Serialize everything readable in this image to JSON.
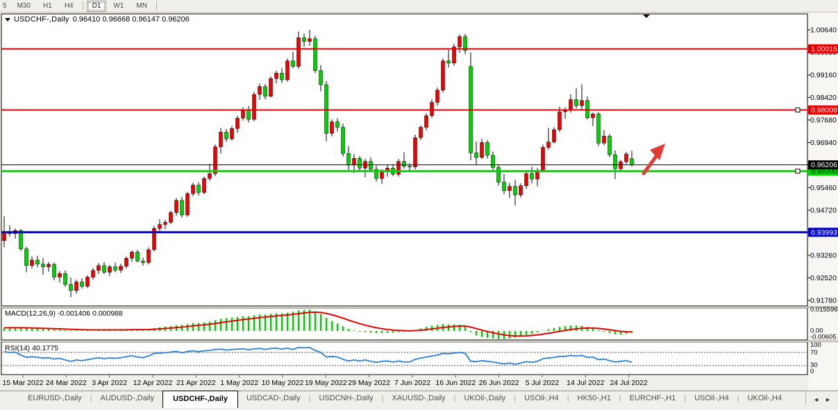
{
  "toolbar": {
    "timeframes": [
      {
        "label": "5",
        "active": false
      },
      {
        "label": "M30",
        "active": false
      },
      {
        "label": "H1",
        "active": false
      },
      {
        "label": "H4",
        "active": false
      },
      {
        "label": "D1",
        "active": true
      },
      {
        "label": "W1",
        "active": false
      },
      {
        "label": "MN",
        "active": false
      }
    ]
  },
  "chart": {
    "symbol": "USDCHF-,Daily",
    "ohlc_text": "0.96410 0.96668 0.96147 0.96206",
    "y_axis_labels": [
      "1.00640",
      "0.99900",
      "0.99160",
      "0.98420",
      "0.97680",
      "0.96940",
      "0.96200",
      "0.95460",
      "0.94720",
      "0.93980",
      "0.93260",
      "0.92520",
      "0.91780"
    ],
    "x_axis_labels": [
      "15 Mar 2022",
      "24 Mar 2022",
      "3 Apr 2022",
      "12 Apr 2022",
      "21 Apr 2022",
      "1 May 2022",
      "10 May 2022",
      "19 May 2022",
      "29 May 2022",
      "7 Jun 2022",
      "16 Jun 2022",
      "26 Jun 2022",
      "5 Jul 2022",
      "14 Jul 2022",
      "24 Jul 2022"
    ]
  },
  "macd_panel": {
    "label": "MACD(12,26,9) -0.001406 0.000988",
    "axis_labels": [
      "0.015596",
      "0.00",
      "-0.00605"
    ]
  },
  "rsi_panel": {
    "label": "RSI(14) 40.1775",
    "axis_labels": [
      "100",
      "70",
      "30",
      "0"
    ]
  },
  "tabbar": {
    "tabs": [
      "EURUSD-,Daily",
      "AUDUSD-,Daily",
      "USDCHF-,Daily",
      "USDCAD-,Daily",
      "USDCNH-,Daily",
      "XAUUSD-,Daily",
      "UKOil-,Daily",
      "USOil-,H4",
      "HK50-,H1",
      "EURCHF-,H1",
      "USOil-,H4",
      "UKOil-,H4"
    ],
    "active_index": 2,
    "scroll_left_icon": "◄",
    "scroll_right_icon": "►"
  },
  "colors": {
    "candle_up": "#f00000",
    "candle_down": "#00d300",
    "wick": "#000000",
    "level_red": "#e00000",
    "level_green": "#00d300",
    "level_blue": "#0000c8",
    "current_price_line": "#000000",
    "macd_hist": "#00cc00",
    "macd_signal": "#e00000",
    "rsi_line": "#2a7fd4",
    "arrow": "#e23b34"
  },
  "chart_data": {
    "type": "candlestick",
    "symbol": "USDCHF",
    "timeframe": "Daily",
    "current_bar": {
      "open": 0.9641,
      "high": 0.96668,
      "low": 0.96147,
      "close": 0.96206
    },
    "levels": [
      {
        "price": 1.00015,
        "label": "1.00015",
        "color": "#e00000",
        "text_color": "#ffffff",
        "line_width": 2,
        "handle": false
      },
      {
        "price": 0.98008,
        "label": "0.98008",
        "color": "#e00000",
        "text_color": "#ffffff",
        "line_width": 2,
        "handle": true
      },
      {
        "price": 0.96,
        "label": "0.96000",
        "color": "#00d300",
        "text_color": "#000000",
        "line_width": 3,
        "handle": true
      },
      {
        "price": 0.93993,
        "label": "0.93993",
        "color": "#0000c8",
        "text_color": "#ffffff",
        "line_width": 3,
        "handle": false
      }
    ],
    "current_price": {
      "value": 0.96206,
      "label": "0.96206"
    },
    "y_ticks": [
      1.0064,
      0.999,
      0.9916,
      0.9842,
      0.9768,
      0.9694,
      0.962,
      0.9546,
      0.9472,
      0.9398,
      0.9326,
      0.9252,
      0.9178
    ],
    "ylim": [
      0.915,
      1.009
    ],
    "candles_ohlc": [
      [
        0.9372,
        0.9452,
        0.935,
        0.94
      ],
      [
        0.94,
        0.9422,
        0.9385,
        0.9395
      ],
      [
        0.9395,
        0.9412,
        0.9378,
        0.9405
      ],
      [
        0.9405,
        0.941,
        0.9338,
        0.9345
      ],
      [
        0.9345,
        0.9352,
        0.9268,
        0.929
      ],
      [
        0.929,
        0.932,
        0.928,
        0.9308
      ],
      [
        0.9308,
        0.9322,
        0.9284,
        0.9295
      ],
      [
        0.9295,
        0.9314,
        0.926,
        0.9286
      ],
      [
        0.9286,
        0.9302,
        0.927,
        0.9294
      ],
      [
        0.9294,
        0.93,
        0.9242,
        0.9252
      ],
      [
        0.9252,
        0.9272,
        0.9234,
        0.9264
      ],
      [
        0.9264,
        0.9274,
        0.922,
        0.9228
      ],
      [
        0.9228,
        0.925,
        0.9186,
        0.9208
      ],
      [
        0.9208,
        0.9244,
        0.9198,
        0.9236
      ],
      [
        0.9236,
        0.9248,
        0.9214,
        0.9222
      ],
      [
        0.9222,
        0.9258,
        0.9216,
        0.9252
      ],
      [
        0.9252,
        0.9282,
        0.9244,
        0.9274
      ],
      [
        0.9274,
        0.9298,
        0.9262,
        0.929
      ],
      [
        0.929,
        0.9302,
        0.9262,
        0.9268
      ],
      [
        0.9268,
        0.9292,
        0.9256,
        0.9286
      ],
      [
        0.9286,
        0.93,
        0.9268,
        0.9275
      ],
      [
        0.9275,
        0.9296,
        0.9266,
        0.9288
      ],
      [
        0.9288,
        0.932,
        0.928,
        0.9314
      ],
      [
        0.9314,
        0.934,
        0.9302,
        0.9334
      ],
      [
        0.9334,
        0.9342,
        0.93,
        0.9305
      ],
      [
        0.9305,
        0.9316,
        0.929,
        0.93
      ],
      [
        0.93,
        0.935,
        0.9294,
        0.9342
      ],
      [
        0.9342,
        0.942,
        0.9336,
        0.9412
      ],
      [
        0.9412,
        0.9442,
        0.9398,
        0.9425
      ],
      [
        0.9425,
        0.944,
        0.941,
        0.9432
      ],
      [
        0.9432,
        0.947,
        0.9426,
        0.9464
      ],
      [
        0.9464,
        0.9512,
        0.9454,
        0.9504
      ],
      [
        0.9504,
        0.9515,
        0.9448,
        0.9456
      ],
      [
        0.9456,
        0.9532,
        0.945,
        0.9526
      ],
      [
        0.9526,
        0.9562,
        0.9518,
        0.9554
      ],
      [
        0.9554,
        0.9564,
        0.952,
        0.953
      ],
      [
        0.953,
        0.9582,
        0.9524,
        0.9576
      ],
      [
        0.9576,
        0.9624,
        0.9568,
        0.9592
      ],
      [
        0.9592,
        0.9688,
        0.9584,
        0.968
      ],
      [
        0.968,
        0.9742,
        0.9658,
        0.9728
      ],
      [
        0.9728,
        0.9738,
        0.9696,
        0.9706
      ],
      [
        0.9706,
        0.9748,
        0.97,
        0.974
      ],
      [
        0.974,
        0.9782,
        0.9726,
        0.9774
      ],
      [
        0.9774,
        0.981,
        0.9766,
        0.9802
      ],
      [
        0.9802,
        0.9814,
        0.976,
        0.977
      ],
      [
        0.977,
        0.986,
        0.9764,
        0.9852
      ],
      [
        0.9852,
        0.9888,
        0.9834,
        0.9878
      ],
      [
        0.9878,
        0.9886,
        0.9836,
        0.9846
      ],
      [
        0.9846,
        0.9912,
        0.9842,
        0.9904
      ],
      [
        0.9904,
        0.993,
        0.9888,
        0.9922
      ],
      [
        0.9922,
        0.9938,
        0.989,
        0.99
      ],
      [
        0.99,
        0.997,
        0.9894,
        0.9962
      ],
      [
        0.9962,
        0.9992,
        0.9938,
        0.9944
      ],
      [
        0.9944,
        1.0059,
        0.9936,
        1.0038
      ],
      [
        1.0038,
        1.0052,
        1.0008,
        1.0026
      ],
      [
        1.0026,
        1.0064,
        1.0012,
        1.0035
      ],
      [
        1.0035,
        1.0045,
        0.9922,
        0.993
      ],
      [
        0.993,
        0.9948,
        0.9862,
        0.9884
      ],
      [
        0.9884,
        0.9896,
        0.9698,
        0.9724
      ],
      [
        0.9724,
        0.977,
        0.9714,
        0.9762
      ],
      [
        0.9762,
        0.9774,
        0.973,
        0.9744
      ],
      [
        0.9744,
        0.9756,
        0.9648,
        0.9658
      ],
      [
        0.9658,
        0.9682,
        0.9604,
        0.962
      ],
      [
        0.962,
        0.9656,
        0.9594,
        0.9642
      ],
      [
        0.9642,
        0.965,
        0.96,
        0.961
      ],
      [
        0.961,
        0.964,
        0.958,
        0.9632
      ],
      [
        0.9632,
        0.9645,
        0.9598,
        0.9606
      ],
      [
        0.9606,
        0.9618,
        0.9566,
        0.9576
      ],
      [
        0.9576,
        0.9606,
        0.9558,
        0.9598
      ],
      [
        0.9598,
        0.962,
        0.9582,
        0.961
      ],
      [
        0.961,
        0.9622,
        0.9584,
        0.959
      ],
      [
        0.959,
        0.964,
        0.9582,
        0.9632
      ],
      [
        0.9632,
        0.9662,
        0.9608,
        0.9616
      ],
      [
        0.9616,
        0.9626,
        0.9598,
        0.9614
      ],
      [
        0.9614,
        0.972,
        0.9606,
        0.971
      ],
      [
        0.971,
        0.975,
        0.9702,
        0.9744
      ],
      [
        0.9744,
        0.979,
        0.9734,
        0.9782
      ],
      [
        0.9782,
        0.9836,
        0.9774,
        0.9826
      ],
      [
        0.9826,
        0.9875,
        0.9815,
        0.9866
      ],
      [
        0.9866,
        0.997,
        0.9858,
        0.9962
      ],
      [
        0.9962,
        0.9998,
        0.994,
        0.9955
      ],
      [
        0.9955,
        1.0018,
        0.9946,
        1.0008
      ],
      [
        1.0008,
        1.0049,
        0.9988,
        1.0042
      ],
      [
        1.0042,
        1.0051,
        0.9984,
        0.9996
      ],
      [
        0.9944,
        0.999,
        0.9636,
        0.966
      ],
      [
        0.966,
        0.9697,
        0.9622,
        0.9645
      ],
      [
        0.9645,
        0.9707,
        0.964,
        0.9694
      ],
      [
        0.9694,
        0.9702,
        0.9642,
        0.9652
      ],
      [
        0.9652,
        0.9664,
        0.9604,
        0.9612
      ],
      [
        0.9612,
        0.962,
        0.9552,
        0.9564
      ],
      [
        0.9564,
        0.959,
        0.9524,
        0.9536
      ],
      [
        0.9536,
        0.9562,
        0.9512,
        0.955
      ],
      [
        0.955,
        0.9572,
        0.9487,
        0.9522
      ],
      [
        0.9522,
        0.956,
        0.9514,
        0.9552
      ],
      [
        0.9552,
        0.96,
        0.9542,
        0.9592
      ],
      [
        0.9592,
        0.9614,
        0.956,
        0.9574
      ],
      [
        0.9574,
        0.961,
        0.955,
        0.9602
      ],
      [
        0.9602,
        0.9687,
        0.9596,
        0.9678
      ],
      [
        0.9678,
        0.9742,
        0.967,
        0.9696
      ],
      [
        0.9696,
        0.9744,
        0.969,
        0.9736
      ],
      [
        0.9736,
        0.9812,
        0.9728,
        0.9795
      ],
      [
        0.9795,
        0.981,
        0.9772,
        0.9802
      ],
      [
        0.98,
        0.9852,
        0.9792,
        0.9835
      ],
      [
        0.9835,
        0.9872,
        0.9806,
        0.9815
      ],
      [
        0.9815,
        0.9885,
        0.9802,
        0.9832
      ],
      [
        0.9832,
        0.9845,
        0.977,
        0.9775
      ],
      [
        0.9775,
        0.9792,
        0.9748,
        0.9788
      ],
      [
        0.9788,
        0.9794,
        0.9682,
        0.9692
      ],
      [
        0.9692,
        0.9735,
        0.9685,
        0.9715
      ],
      [
        0.9715,
        0.9722,
        0.9646,
        0.9654
      ],
      [
        0.9654,
        0.9668,
        0.9574,
        0.9608
      ],
      [
        0.9608,
        0.9637,
        0.9601,
        0.9631
      ],
      [
        0.9631,
        0.9663,
        0.9623,
        0.9656
      ],
      [
        0.9641,
        0.96668,
        0.96147,
        0.96206
      ]
    ],
    "indicators": {
      "macd": {
        "label": "MACD(12,26,9)",
        "current_macd": -0.001406,
        "current_signal": 0.000988,
        "scale_max": 0.015596,
        "scale_min": -0.00605,
        "values": [
          0.0022,
          0.0024,
          0.0025,
          0.0022,
          0.0018,
          0.0016,
          0.0015,
          0.0013,
          0.0012,
          0.001,
          0.0008,
          0.0006,
          0.0004,
          0.0004,
          0.0003,
          0.0004,
          0.0005,
          0.0007,
          0.0006,
          0.0007,
          0.0007,
          0.0008,
          0.001,
          0.0013,
          0.0012,
          0.001,
          0.0012,
          0.002,
          0.0026,
          0.003,
          0.0034,
          0.004,
          0.0042,
          0.0048,
          0.0055,
          0.0056,
          0.006,
          0.0065,
          0.0075,
          0.0085,
          0.009,
          0.0094,
          0.0098,
          0.0103,
          0.0104,
          0.011,
          0.0116,
          0.0115,
          0.012,
          0.0124,
          0.0123,
          0.0128,
          0.0135,
          0.0145,
          0.0148,
          0.015,
          0.0138,
          0.012,
          0.0092,
          0.007,
          0.0052,
          0.0032,
          0.0014,
          0.0004,
          -0.0004,
          -0.0008,
          -0.0012,
          -0.0016,
          -0.0016,
          -0.0014,
          -0.0012,
          -0.0008,
          -0.0006,
          -0.0004,
          0.0008,
          0.0018,
          0.0028,
          0.0036,
          0.0042,
          0.0048,
          0.0046,
          0.0046,
          0.0044,
          0.0038,
          -0.0008,
          -0.0032,
          -0.0042,
          -0.0048,
          -0.0054,
          -0.0058,
          -0.006,
          -0.0054,
          -0.0048,
          -0.0038,
          -0.0028,
          -0.002,
          -0.001,
          0.0002,
          0.0012,
          0.002,
          0.0028,
          0.0034,
          0.0038,
          0.0038,
          0.0036,
          0.0028,
          0.002,
          0.0006,
          -0.0006,
          -0.0016,
          -0.0024,
          -0.0026,
          -0.002,
          -0.0014
        ]
      },
      "rsi": {
        "label": "RSI(14)",
        "current": 40.1775,
        "levels": [
          70,
          30
        ],
        "values": [
          72,
          70,
          71,
          62,
          55,
          57,
          55,
          53,
          54,
          50,
          52,
          47,
          43,
          47,
          45,
          48,
          51,
          54,
          51,
          53,
          52,
          54,
          57,
          60,
          56,
          54,
          59,
          67,
          68,
          69,
          71,
          73,
          69,
          73,
          75,
          72,
          75,
          76,
          79,
          80,
          77,
          79,
          80,
          81,
          78,
          81,
          82,
          79,
          82,
          83,
          80,
          83,
          79,
          85,
          84,
          85,
          76,
          70,
          56,
          58,
          56,
          49,
          44,
          47,
          44,
          47,
          43,
          40,
          43,
          44,
          41,
          44,
          41,
          41,
          49,
          53,
          56,
          59,
          62,
          67,
          66,
          68,
          70,
          67,
          43,
          42,
          45,
          43,
          41,
          38,
          35,
          38,
          34,
          38,
          42,
          40,
          43,
          51,
          53,
          55,
          58,
          58,
          61,
          59,
          61,
          55,
          56,
          48,
          50,
          45,
          41,
          43,
          45,
          40
        ]
      }
    },
    "annotations": [
      {
        "type": "arrow",
        "direction": "up-right",
        "color": "#e23b34",
        "x": 938,
        "y": 228
      }
    ]
  }
}
